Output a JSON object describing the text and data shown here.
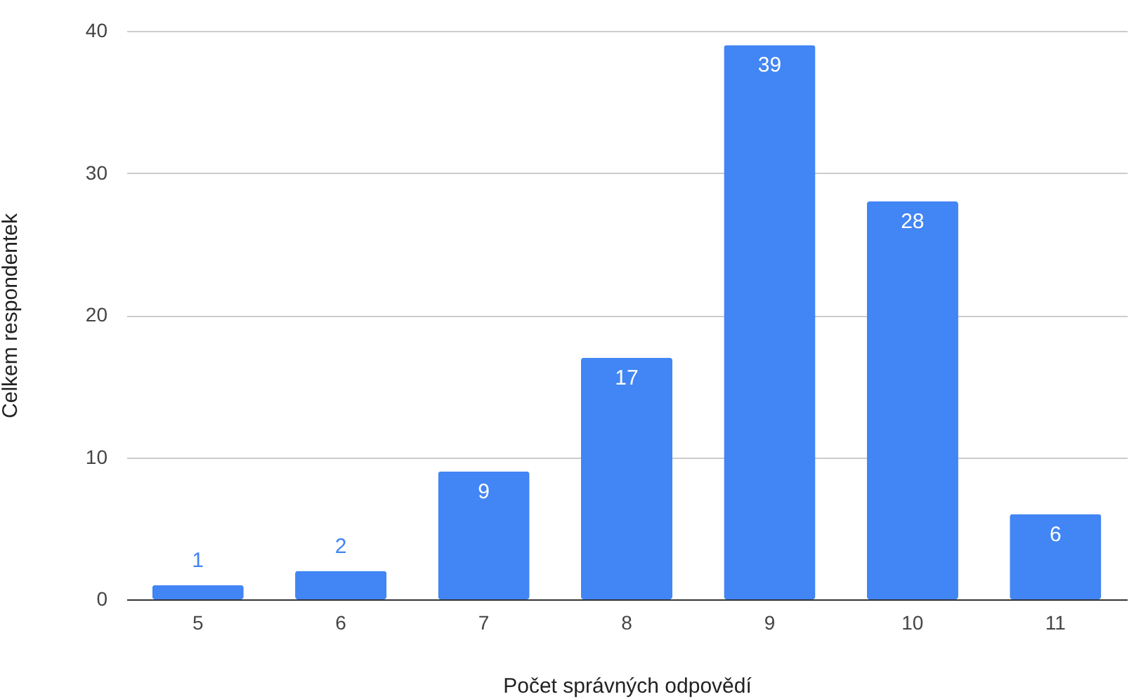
{
  "chart_data": {
    "type": "bar",
    "xlabel": "Počet správných odpovědí",
    "ylabel": "Celkem respondentek",
    "categories": [
      "5",
      "6",
      "7",
      "8",
      "9",
      "10",
      "11"
    ],
    "values": [
      1,
      2,
      9,
      17,
      39,
      28,
      6
    ],
    "color": "#4285f4",
    "ylim": [
      0,
      40
    ],
    "yticks": [
      0,
      10,
      20,
      30,
      40
    ],
    "grid": "y",
    "data_labels": true
  }
}
